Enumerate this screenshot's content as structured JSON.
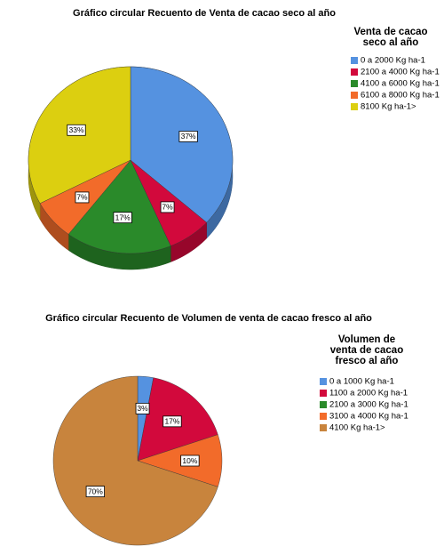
{
  "chart_data": [
    {
      "type": "pie3d",
      "title": "Gráfico circular Recuento de Venta de cacao seco al año",
      "legend_title": [
        "Venta de cacao",
        "seco al año"
      ],
      "categories": [
        "0 a 2000 Kg ha-1",
        "2100 a 4000 Kg ha-1",
        "4100 a 6000 Kg ha-1",
        "6100 a 8000 Kg ha-1",
        "8100 Kg ha-1>"
      ],
      "values": [
        37,
        7,
        17,
        7,
        33
      ],
      "value_labels": [
        "37%",
        "7%",
        "17%",
        "7%",
        "33%"
      ],
      "colors": [
        "#5592e0",
        "#d2093c",
        "#2a8a2a",
        "#f26b2a",
        "#dccf10"
      ]
    },
    {
      "type": "pie",
      "title": "Gráfico circular Recuento de Volumen de venta de cacao fresco al año",
      "legend_title": [
        "Volumen de",
        "venta de cacao",
        "fresco al año"
      ],
      "categories": [
        "0 a 1000 Kg ha-1",
        "1100 a 2000 Kg ha-1",
        "2100 a 3000 Kg ha-1",
        "3100 a 4000 Kg ha-1",
        "4100 Kg ha-1>"
      ],
      "values": [
        3,
        17,
        0,
        10,
        70
      ],
      "value_labels": [
        "3%",
        "17%",
        null,
        "10%",
        "70%"
      ],
      "colors": [
        "#5592e0",
        "#d2093c",
        "#2a8a2a",
        "#f26b2a",
        "#c8843d"
      ]
    }
  ]
}
